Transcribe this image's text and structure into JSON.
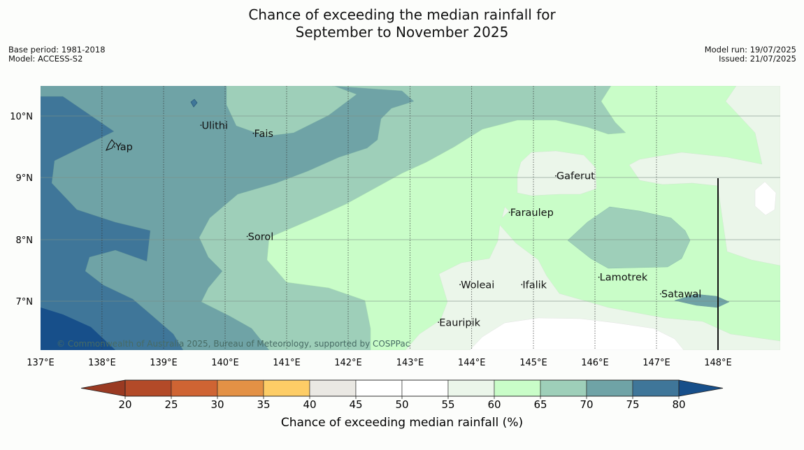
{
  "header": {
    "title_line1": "Chance of exceeding the median rainfall for",
    "title_line2": "September to November 2025",
    "base_period": "Base period: 1981-2018",
    "model": "Model: ACCESS-S2",
    "model_run": "Model run: 19/07/2025",
    "issued": "Issued: 21/07/2025"
  },
  "map": {
    "lon_ticks": [
      "137°E",
      "138°E",
      "139°E",
      "140°E",
      "141°E",
      "142°E",
      "143°E",
      "144°E",
      "145°E",
      "146°E",
      "147°E",
      "148°E"
    ],
    "lat_ticks": [
      "10°N",
      "9°N",
      "8°N",
      "7°N"
    ],
    "places": [
      {
        "name": "Ulithi",
        "lon": 139.6,
        "lat": 9.85
      },
      {
        "name": "Fais",
        "lon": 140.45,
        "lat": 9.72
      },
      {
        "name": "Yap",
        "lon": 138.2,
        "lat": 9.5
      },
      {
        "name": "Gaferut",
        "lon": 145.35,
        "lat": 9.03
      },
      {
        "name": "Faraulep",
        "lon": 144.6,
        "lat": 8.44
      },
      {
        "name": "Sorol",
        "lon": 140.35,
        "lat": 8.05
      },
      {
        "name": "Woleai",
        "lon": 143.8,
        "lat": 7.27
      },
      {
        "name": "Ifalik",
        "lon": 144.8,
        "lat": 7.27
      },
      {
        "name": "Lamotrek",
        "lon": 146.05,
        "lat": 7.39
      },
      {
        "name": "Satawal",
        "lon": 147.05,
        "lat": 7.12
      },
      {
        "name": "Eauripik",
        "lon": 143.45,
        "lat": 6.66
      }
    ],
    "copyright": "© Commonwealth of Australia 2025, Bureau of Meteorology, supported by COSPPac"
  },
  "colorbar": {
    "ticks": [
      "20",
      "25",
      "30",
      "35",
      "40",
      "45",
      "50",
      "55",
      "60",
      "65",
      "70",
      "75",
      "80"
    ],
    "colors": [
      "#b34a28",
      "#cf6433",
      "#e39145",
      "#fdcd66",
      "#eae8e3",
      "#ffffff",
      "#ffffff",
      "#ebf6ea",
      "#c9fdc8",
      "#9ecfb9",
      "#6fa3a6",
      "#3f7699"
    ],
    "under_color": "#9a3a22",
    "over_color": "#174f8a",
    "label": "Chance of exceeding median rainfall (%)"
  }
}
